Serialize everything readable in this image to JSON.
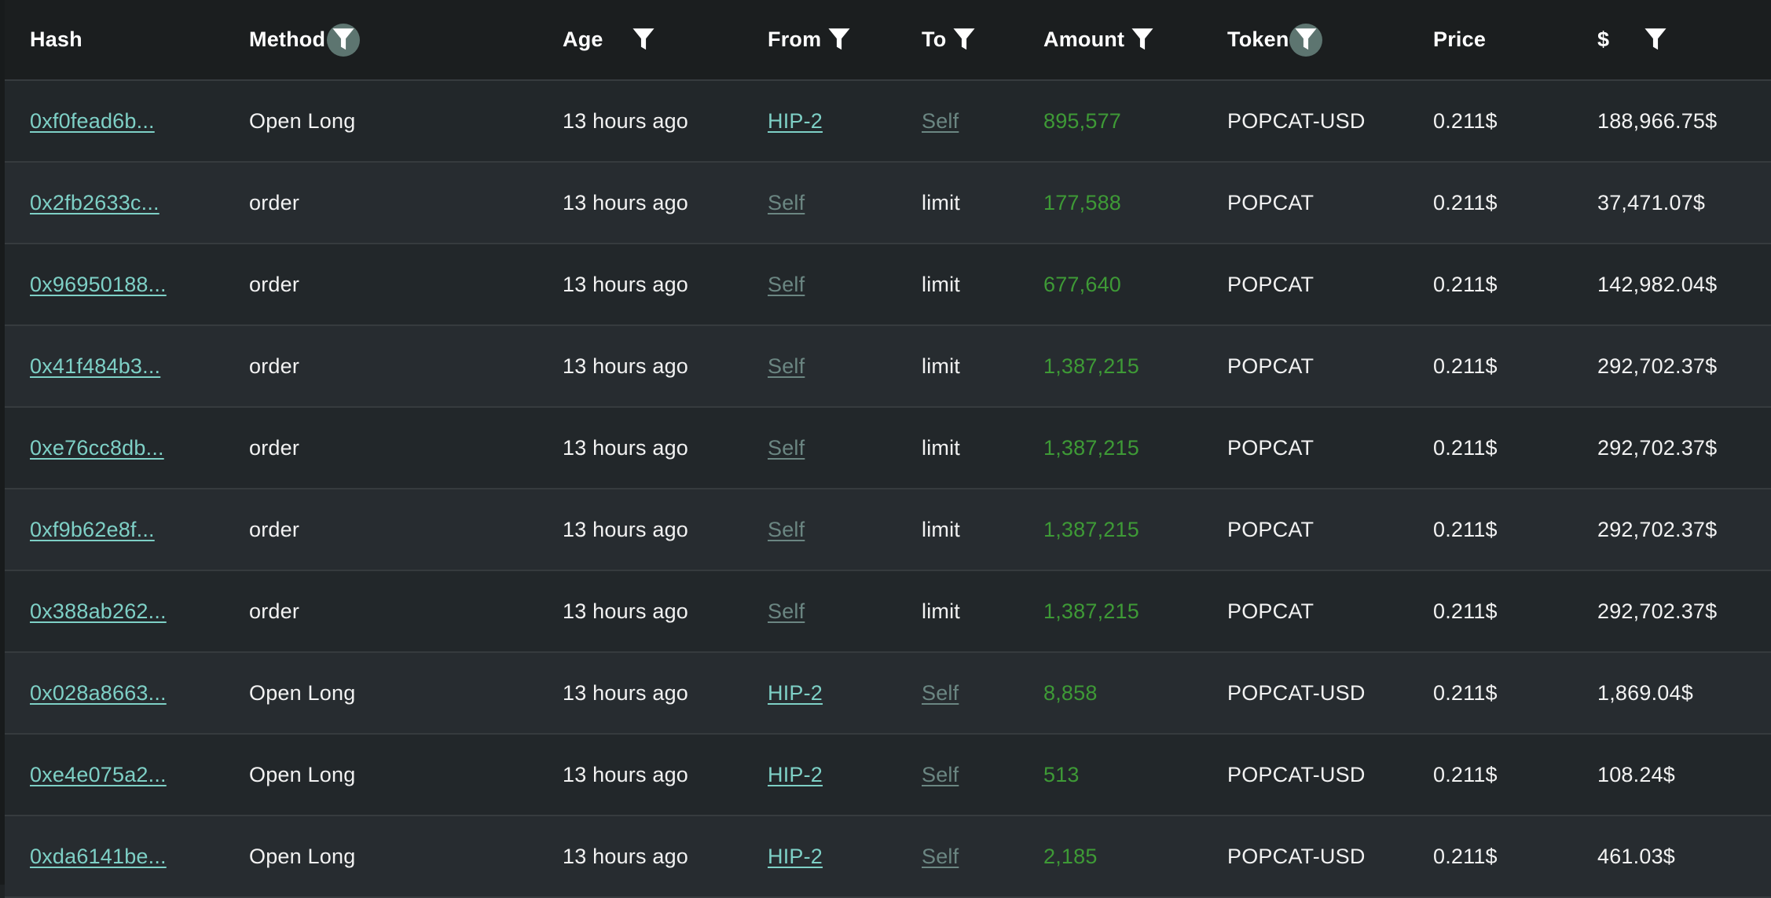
{
  "columns": {
    "hash": "Hash",
    "method": "Method",
    "age": "Age",
    "from": "From",
    "to": "To",
    "amount": "Amount",
    "token": "Token",
    "price": "Price",
    "usd": "$"
  },
  "icons": {
    "filter": "filter-icon"
  },
  "colors": {
    "link": "#7ed0c6",
    "self_link": "#6b8682",
    "amount": "#3e9a36",
    "active_filter_bg": "#5d7570"
  },
  "rows": [
    {
      "hash": "0xf0fead6b...",
      "method": "Open Long",
      "age": "13 hours ago",
      "from": "HIP-2",
      "to": "Self",
      "amount": "895,577",
      "token": "POPCAT-USD",
      "price": "0.211$",
      "usd": "188,966.75$"
    },
    {
      "hash": "0x2fb2633c...",
      "method": "order",
      "age": "13 hours ago",
      "from": "Self",
      "to": "limit",
      "amount": "177,588",
      "token": "POPCAT",
      "price": "0.211$",
      "usd": "37,471.07$"
    },
    {
      "hash": "0x96950188...",
      "method": "order",
      "age": "13 hours ago",
      "from": "Self",
      "to": "limit",
      "amount": "677,640",
      "token": "POPCAT",
      "price": "0.211$",
      "usd": "142,982.04$"
    },
    {
      "hash": "0x41f484b3...",
      "method": "order",
      "age": "13 hours ago",
      "from": "Self",
      "to": "limit",
      "amount": "1,387,215",
      "token": "POPCAT",
      "price": "0.211$",
      "usd": "292,702.37$"
    },
    {
      "hash": "0xe76cc8db...",
      "method": "order",
      "age": "13 hours ago",
      "from": "Self",
      "to": "limit",
      "amount": "1,387,215",
      "token": "POPCAT",
      "price": "0.211$",
      "usd": "292,702.37$"
    },
    {
      "hash": "0xf9b62e8f...",
      "method": "order",
      "age": "13 hours ago",
      "from": "Self",
      "to": "limit",
      "amount": "1,387,215",
      "token": "POPCAT",
      "price": "0.211$",
      "usd": "292,702.37$"
    },
    {
      "hash": "0x388ab262...",
      "method": "order",
      "age": "13 hours ago",
      "from": "Self",
      "to": "limit",
      "amount": "1,387,215",
      "token": "POPCAT",
      "price": "0.211$",
      "usd": "292,702.37$"
    },
    {
      "hash": "0x028a8663...",
      "method": "Open Long",
      "age": "13 hours ago",
      "from": "HIP-2",
      "to": "Self",
      "amount": "8,858",
      "token": "POPCAT-USD",
      "price": "0.211$",
      "usd": "1,869.04$"
    },
    {
      "hash": "0xe4e075a2...",
      "method": "Open Long",
      "age": "13 hours ago",
      "from": "HIP-2",
      "to": "Self",
      "amount": "513",
      "token": "POPCAT-USD",
      "price": "0.211$",
      "usd": "108.24$"
    },
    {
      "hash": "0xda6141be...",
      "method": "Open Long",
      "age": "13 hours ago",
      "from": "HIP-2",
      "to": "Self",
      "amount": "2,185",
      "token": "POPCAT-USD",
      "price": "0.211$",
      "usd": "461.03$"
    }
  ]
}
